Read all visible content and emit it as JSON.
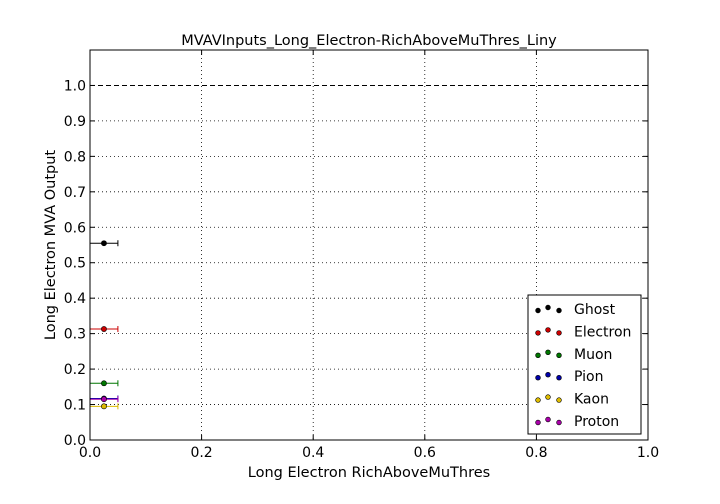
{
  "chart_data": {
    "type": "scatter",
    "title": "MVAVInputs_Long_Electron-RichAboveMuThres_Liny",
    "xlabel": "Long Electron RichAboveMuThres",
    "ylabel": "Long Electron MVA Output",
    "xlim": [
      0.0,
      1.0
    ],
    "ylim": [
      0.0,
      1.1
    ],
    "xticks": [
      "0.0",
      "0.2",
      "0.4",
      "0.6",
      "0.8",
      "1.0"
    ],
    "yticks": [
      "0.0",
      "0.1",
      "0.2",
      "0.3",
      "0.4",
      "0.5",
      "0.6",
      "0.7",
      "0.8",
      "0.9",
      "1.0"
    ],
    "grid": true,
    "reference_line": {
      "y": 1.0,
      "style": "dashed"
    },
    "legend_position": "bottom-right",
    "series": [
      {
        "name": "Ghost",
        "color": "#000000",
        "x": 0.025,
        "y": 0.555,
        "xerr": 0.025
      },
      {
        "name": "Electron",
        "color": "#cc0000",
        "x": 0.025,
        "y": 0.313,
        "xerr": 0.025
      },
      {
        "name": "Muon",
        "color": "#007700",
        "x": 0.025,
        "y": 0.16,
        "xerr": 0.025
      },
      {
        "name": "Pion",
        "color": "#0000aa",
        "x": 0.025,
        "y": 0.117,
        "xerr": 0.025
      },
      {
        "name": "Kaon",
        "color": "#ddbb00",
        "x": 0.025,
        "y": 0.095,
        "xerr": 0.025
      },
      {
        "name": "Proton",
        "color": "#aa00aa",
        "x": 0.025,
        "y": 0.115,
        "xerr": 0.025
      }
    ]
  }
}
